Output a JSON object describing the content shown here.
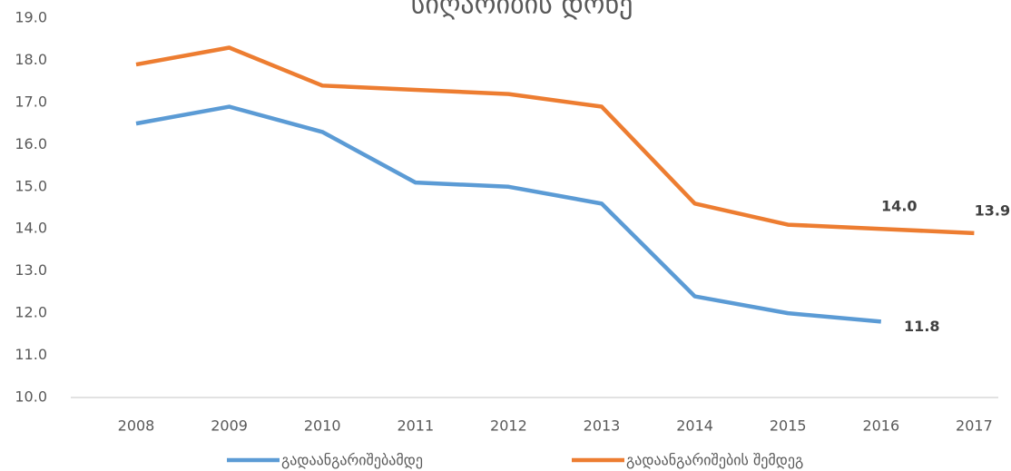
{
  "chart_data": {
    "type": "line",
    "title": "სიღარიბის დონე",
    "categories": [
      "2008",
      "2009",
      "2010",
      "2011",
      "2012",
      "2013",
      "2014",
      "2015",
      "2016",
      "2017"
    ],
    "series": [
      {
        "name": "გადაანგარიშებამდე",
        "color": "#5b9bd5",
        "values": [
          16.5,
          16.9,
          16.3,
          15.1,
          15.0,
          14.6,
          12.4,
          12.0,
          11.8,
          null
        ],
        "value_labels": [
          null,
          null,
          null,
          null,
          null,
          null,
          null,
          null,
          "11.8",
          null
        ]
      },
      {
        "name": "გადაანგარიშების შემდეგ",
        "color": "#ed7d31",
        "values": [
          17.9,
          18.3,
          17.4,
          17.3,
          17.2,
          16.9,
          14.6,
          14.1,
          14.0,
          13.9
        ],
        "value_labels": [
          null,
          null,
          null,
          null,
          null,
          null,
          null,
          null,
          "14.0",
          "13.9"
        ]
      }
    ],
    "ylim": [
      10,
      19
    ],
    "yticks": [
      {
        "value": 10,
        "label": "10.0"
      },
      {
        "value": 11,
        "label": "11.0"
      },
      {
        "value": 12,
        "label": "12.0"
      },
      {
        "value": 13,
        "label": "13.0"
      },
      {
        "value": 14,
        "label": "14.0"
      },
      {
        "value": 15,
        "label": "15.0"
      },
      {
        "value": 16,
        "label": "16.0"
      },
      {
        "value": 17,
        "label": "17.0"
      },
      {
        "value": 18,
        "label": "18.0"
      },
      {
        "value": 19,
        "label": "19.0"
      }
    ],
    "grid": false,
    "legend": "bottom"
  }
}
